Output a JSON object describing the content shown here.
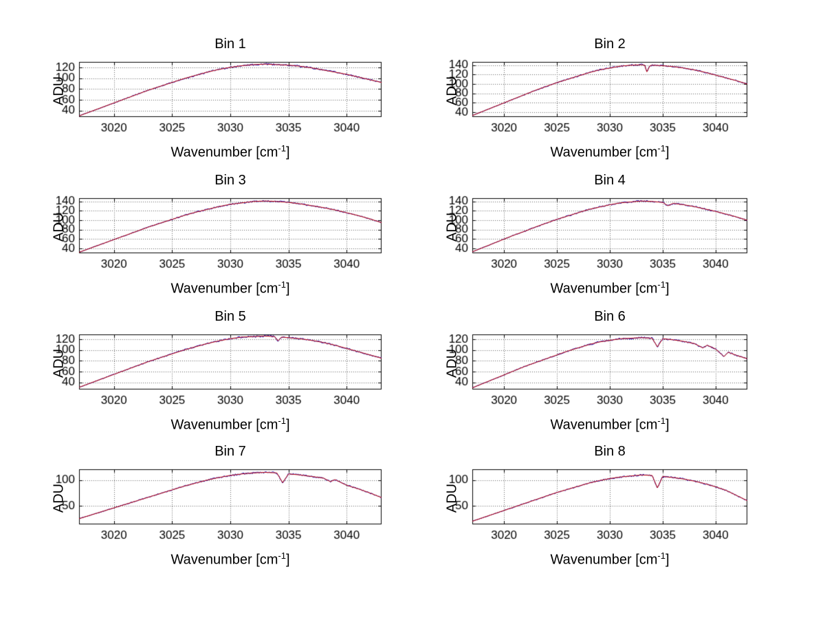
{
  "figure": {
    "background": "#ffffff",
    "axis_color": "#000000",
    "grid_color": "#606060",
    "series_colors": {
      "data": "#0000bb",
      "fit": "#c00000"
    }
  },
  "labels": {
    "ylabel": "ADU",
    "xlabel_prefix": "Wavenumber [cm",
    "xlabel_sup": "-1",
    "xlabel_suffix": "]"
  },
  "chart_data": [
    {
      "type": "line",
      "title": "Bin 1",
      "xlabel": "Wavenumber [cm^-1]",
      "ylabel": "ADU",
      "xlim": [
        3017,
        3043
      ],
      "ylim": [
        28,
        130
      ],
      "xticks": [
        3020,
        3025,
        3030,
        3035,
        3040
      ],
      "yticks": [
        40,
        60,
        80,
        100,
        120
      ],
      "grid": true,
      "legend": "none",
      "points": [
        [
          3017,
          30
        ],
        [
          3018,
          38
        ],
        [
          3019,
          46
        ],
        [
          3020,
          54
        ],
        [
          3021,
          62
        ],
        [
          3022,
          70
        ],
        [
          3023,
          78
        ],
        [
          3024,
          85
        ],
        [
          3025,
          92
        ],
        [
          3026,
          99
        ],
        [
          3027,
          105
        ],
        [
          3028,
          111
        ],
        [
          3029,
          116
        ],
        [
          3030,
          120
        ],
        [
          3031,
          123
        ],
        [
          3032,
          125
        ],
        [
          3033,
          126
        ],
        [
          3034,
          125
        ],
        [
          3035,
          124
        ],
        [
          3036,
          122
        ],
        [
          3037,
          119
        ],
        [
          3038,
          115
        ],
        [
          3039,
          111
        ],
        [
          3040,
          107
        ],
        [
          3041,
          102
        ],
        [
          3042,
          97
        ],
        [
          3043,
          92
        ]
      ]
    },
    {
      "type": "line",
      "title": "Bin 2",
      "xlabel": "Wavenumber [cm^-1]",
      "ylabel": "ADU",
      "xlim": [
        3017,
        3043
      ],
      "ylim": [
        30,
        147
      ],
      "xticks": [
        3020,
        3025,
        3030,
        3035,
        3040
      ],
      "yticks": [
        40,
        60,
        80,
        100,
        120,
        140
      ],
      "grid": true,
      "legend": "none",
      "points": [
        [
          3017,
          33
        ],
        [
          3018,
          42
        ],
        [
          3019,
          51
        ],
        [
          3020,
          60
        ],
        [
          3021,
          69
        ],
        [
          3022,
          78
        ],
        [
          3023,
          87
        ],
        [
          3024,
          95
        ],
        [
          3025,
          103
        ],
        [
          3026,
          110
        ],
        [
          3027,
          117
        ],
        [
          3028,
          124
        ],
        [
          3029,
          130
        ],
        [
          3030,
          134
        ],
        [
          3031,
          138
        ],
        [
          3032,
          140
        ],
        [
          3033,
          141
        ],
        [
          3033.3,
          140
        ],
        [
          3033.5,
          126
        ],
        [
          3033.8,
          139
        ],
        [
          3034,
          140
        ],
        [
          3035,
          139
        ],
        [
          3036,
          137
        ],
        [
          3037,
          134
        ],
        [
          3038,
          130
        ],
        [
          3039,
          125
        ],
        [
          3040,
          119
        ],
        [
          3041,
          113
        ],
        [
          3042,
          107
        ],
        [
          3043,
          100
        ]
      ]
    },
    {
      "type": "line",
      "title": "Bin 3",
      "xlabel": "Wavenumber [cm^-1]",
      "ylabel": "ADU",
      "xlim": [
        3017,
        3043
      ],
      "ylim": [
        30,
        147
      ],
      "xticks": [
        3020,
        3025,
        3030,
        3035,
        3040
      ],
      "yticks": [
        40,
        60,
        80,
        100,
        120,
        140
      ],
      "grid": true,
      "legend": "none",
      "points": [
        [
          3017,
          32
        ],
        [
          3018,
          41
        ],
        [
          3019,
          50
        ],
        [
          3020,
          59
        ],
        [
          3021,
          68
        ],
        [
          3022,
          77
        ],
        [
          3023,
          86
        ],
        [
          3024,
          94
        ],
        [
          3025,
          102
        ],
        [
          3026,
          110
        ],
        [
          3027,
          117
        ],
        [
          3028,
          123
        ],
        [
          3029,
          129
        ],
        [
          3030,
          134
        ],
        [
          3031,
          137
        ],
        [
          3032,
          140
        ],
        [
          3033,
          141
        ],
        [
          3034,
          140
        ],
        [
          3035,
          138
        ],
        [
          3036,
          135
        ],
        [
          3037,
          131
        ],
        [
          3038,
          127
        ],
        [
          3039,
          122
        ],
        [
          3040,
          116
        ],
        [
          3041,
          110
        ],
        [
          3042,
          103
        ],
        [
          3043,
          95
        ]
      ]
    },
    {
      "type": "line",
      "title": "Bin 4",
      "xlabel": "Wavenumber [cm^-1]",
      "ylabel": "ADU",
      "xlim": [
        3017,
        3043
      ],
      "ylim": [
        30,
        147
      ],
      "xticks": [
        3020,
        3025,
        3030,
        3035,
        3040
      ],
      "yticks": [
        40,
        60,
        80,
        100,
        120,
        140
      ],
      "grid": true,
      "legend": "none",
      "points": [
        [
          3017,
          33
        ],
        [
          3018,
          42
        ],
        [
          3019,
          51
        ],
        [
          3020,
          60
        ],
        [
          3021,
          69
        ],
        [
          3022,
          77
        ],
        [
          3023,
          86
        ],
        [
          3024,
          94
        ],
        [
          3025,
          102
        ],
        [
          3026,
          109
        ],
        [
          3027,
          116
        ],
        [
          3028,
          123
        ],
        [
          3029,
          128
        ],
        [
          3030,
          133
        ],
        [
          3031,
          137
        ],
        [
          3032,
          139
        ],
        [
          3033,
          141
        ],
        [
          3034,
          140
        ],
        [
          3035,
          138
        ],
        [
          3035.5,
          131
        ],
        [
          3036,
          136
        ],
        [
          3037,
          133
        ],
        [
          3038,
          129
        ],
        [
          3039,
          124
        ],
        [
          3040,
          119
        ],
        [
          3041,
          113
        ],
        [
          3042,
          107
        ],
        [
          3043,
          100
        ]
      ]
    },
    {
      "type": "line",
      "title": "Bin 5",
      "xlabel": "Wavenumber [cm^-1]",
      "ylabel": "ADU",
      "xlim": [
        3017,
        3043
      ],
      "ylim": [
        27,
        129
      ],
      "xticks": [
        3020,
        3025,
        3030,
        3035,
        3040
      ],
      "yticks": [
        40,
        60,
        80,
        100,
        120
      ],
      "grid": true,
      "legend": "none",
      "points": [
        [
          3017,
          31
        ],
        [
          3018,
          39
        ],
        [
          3019,
          47
        ],
        [
          3020,
          55
        ],
        [
          3021,
          63
        ],
        [
          3022,
          71
        ],
        [
          3023,
          79
        ],
        [
          3024,
          86
        ],
        [
          3025,
          93
        ],
        [
          3026,
          100
        ],
        [
          3027,
          106
        ],
        [
          3028,
          112
        ],
        [
          3029,
          117
        ],
        [
          3030,
          121
        ],
        [
          3031,
          124
        ],
        [
          3032,
          125
        ],
        [
          3033,
          126
        ],
        [
          3033.8,
          125
        ],
        [
          3034.1,
          117
        ],
        [
          3034.4,
          124
        ],
        [
          3035,
          123
        ],
        [
          3036,
          121
        ],
        [
          3037,
          118
        ],
        [
          3038,
          114
        ],
        [
          3039,
          109
        ],
        [
          3040,
          103
        ],
        [
          3041,
          97
        ],
        [
          3042,
          91
        ],
        [
          3043,
          85
        ]
      ]
    },
    {
      "type": "line",
      "title": "Bin 6",
      "xlabel": "Wavenumber [cm^-1]",
      "ylabel": "ADU",
      "xlim": [
        3017,
        3043
      ],
      "ylim": [
        27,
        129
      ],
      "xticks": [
        3020,
        3025,
        3030,
        3035,
        3040
      ],
      "yticks": [
        40,
        60,
        80,
        100,
        120
      ],
      "grid": true,
      "legend": "none",
      "points": [
        [
          3017,
          30
        ],
        [
          3018,
          38
        ],
        [
          3019,
          46
        ],
        [
          3020,
          54
        ],
        [
          3021,
          62
        ],
        [
          3022,
          70
        ],
        [
          3023,
          77
        ],
        [
          3024,
          84
        ],
        [
          3025,
          91
        ],
        [
          3026,
          98
        ],
        [
          3027,
          104
        ],
        [
          3028,
          110
        ],
        [
          3029,
          115
        ],
        [
          3030,
          118
        ],
        [
          3031,
          121
        ],
        [
          3032,
          122
        ],
        [
          3033,
          123
        ],
        [
          3034,
          122
        ],
        [
          3034.5,
          106
        ],
        [
          3035,
          121
        ],
        [
          3036,
          119
        ],
        [
          3037,
          116
        ],
        [
          3038,
          112
        ],
        [
          3038.8,
          104
        ],
        [
          3039.2,
          109
        ],
        [
          3040,
          102
        ],
        [
          3040.8,
          88
        ],
        [
          3041.2,
          96
        ],
        [
          3042,
          90
        ],
        [
          3043,
          84
        ]
      ]
    },
    {
      "type": "line",
      "title": "Bin 7",
      "xlabel": "Wavenumber [cm^-1]",
      "ylabel": "ADU",
      "xlim": [
        3017,
        3043
      ],
      "ylim": [
        14,
        121
      ],
      "xticks": [
        3020,
        3025,
        3030,
        3035,
        3040
      ],
      "yticks": [
        50,
        100
      ],
      "grid": true,
      "legend": "none",
      "points": [
        [
          3017,
          25
        ],
        [
          3018,
          32
        ],
        [
          3019,
          39
        ],
        [
          3020,
          46
        ],
        [
          3021,
          53
        ],
        [
          3022,
          60
        ],
        [
          3023,
          67
        ],
        [
          3024,
          74
        ],
        [
          3025,
          81
        ],
        [
          3026,
          88
        ],
        [
          3027,
          94
        ],
        [
          3028,
          100
        ],
        [
          3029,
          105
        ],
        [
          3030,
          109
        ],
        [
          3031,
          112
        ],
        [
          3032,
          114
        ],
        [
          3033,
          115
        ],
        [
          3034,
          114
        ],
        [
          3034.5,
          95
        ],
        [
          3035,
          112
        ],
        [
          3036,
          110
        ],
        [
          3037,
          107
        ],
        [
          3038,
          104
        ],
        [
          3038.6,
          97
        ],
        [
          3039,
          101
        ],
        [
          3040,
          90
        ],
        [
          3041,
          83
        ],
        [
          3042,
          75
        ],
        [
          3043,
          66
        ]
      ]
    },
    {
      "type": "line",
      "title": "Bin 8",
      "xlabel": "Wavenumber [cm^-1]",
      "ylabel": "ADU",
      "xlim": [
        3017,
        3043
      ],
      "ylim": [
        14,
        121
      ],
      "xticks": [
        3020,
        3025,
        3030,
        3035,
        3040
      ],
      "yticks": [
        50,
        100
      ],
      "grid": true,
      "legend": "none",
      "points": [
        [
          3017,
          20
        ],
        [
          3018,
          27
        ],
        [
          3019,
          34
        ],
        [
          3020,
          41
        ],
        [
          3021,
          48
        ],
        [
          3022,
          55
        ],
        [
          3023,
          62
        ],
        [
          3024,
          69
        ],
        [
          3025,
          76
        ],
        [
          3026,
          82
        ],
        [
          3027,
          88
        ],
        [
          3028,
          94
        ],
        [
          3029,
          99
        ],
        [
          3030,
          103
        ],
        [
          3031,
          106
        ],
        [
          3032,
          108
        ],
        [
          3033,
          110
        ],
        [
          3034,
          109
        ],
        [
          3034.5,
          85
        ],
        [
          3035,
          107
        ],
        [
          3036,
          105
        ],
        [
          3037,
          102
        ],
        [
          3038,
          98
        ],
        [
          3039,
          93
        ],
        [
          3040,
          87
        ],
        [
          3041,
          80
        ],
        [
          3042,
          70
        ],
        [
          3043,
          60
        ]
      ]
    }
  ]
}
